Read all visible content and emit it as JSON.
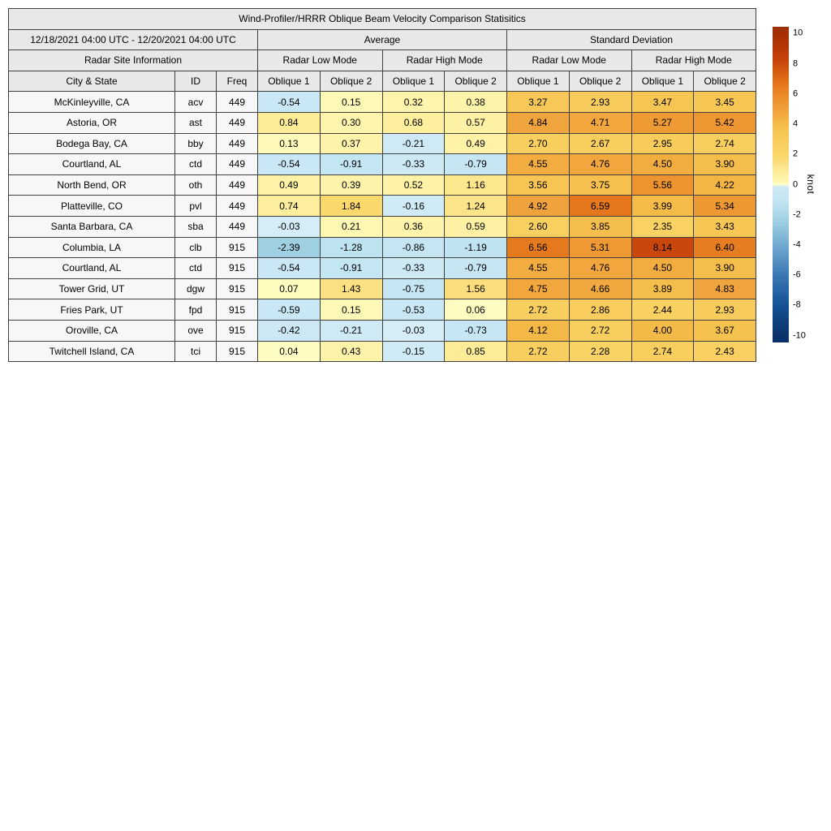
{
  "title": "Wind-Profiler/HRRR Oblique Beam Velocity Comparison Statisitics",
  "chart_data": {
    "type": "table",
    "title": "Wind-Profiler/HRRR Oblique Beam Velocity Comparison Statisitics",
    "date_range": "12/18/2021 04:00 UTC - 12/20/2021 04:00 UTC",
    "section_headers": [
      {
        "label": "Average",
        "colspan": 4
      },
      {
        "label": "Standard Deviation",
        "colspan": 4
      }
    ],
    "mode_headers": [
      {
        "label": "Radar Site Information",
        "colspan": 3
      },
      {
        "label": "Radar Low Mode",
        "colspan": 2
      },
      {
        "label": "Radar High Mode",
        "colspan": 2
      },
      {
        "label": "Radar Low Mode",
        "colspan": 2
      },
      {
        "label": "Radar High Mode",
        "colspan": 2
      }
    ],
    "column_headers": [
      "City & State",
      "ID",
      "Freq",
      "Oblique 1",
      "Oblique 2",
      "Oblique 1",
      "Oblique 2",
      "Oblique 1",
      "Oblique 2",
      "Oblique 1",
      "Oblique 2"
    ],
    "rows": [
      {
        "city": "McKinleyville, CA",
        "id": "acv",
        "freq": "449",
        "values": [
          -0.54,
          0.15,
          0.32,
          0.38,
          3.27,
          2.93,
          3.47,
          3.45
        ]
      },
      {
        "city": "Astoria, OR",
        "id": "ast",
        "freq": "449",
        "values": [
          0.84,
          0.3,
          0.68,
          0.57,
          4.84,
          4.71,
          5.27,
          5.42
        ]
      },
      {
        "city": "Bodega Bay, CA",
        "id": "bby",
        "freq": "449",
        "values": [
          0.13,
          0.37,
          -0.21,
          0.49,
          2.7,
          2.67,
          2.95,
          2.74
        ]
      },
      {
        "city": "Courtland, AL",
        "id": "ctd",
        "freq": "449",
        "values": [
          -0.54,
          -0.91,
          -0.33,
          -0.79,
          4.55,
          4.76,
          4.5,
          3.9
        ]
      },
      {
        "city": "North Bend, OR",
        "id": "oth",
        "freq": "449",
        "values": [
          0.49,
          0.39,
          0.52,
          1.16,
          3.56,
          3.75,
          5.56,
          4.22
        ]
      },
      {
        "city": "Platteville, CO",
        "id": "pvl",
        "freq": "449",
        "values": [
          0.74,
          1.84,
          -0.16,
          1.24,
          4.92,
          6.59,
          3.99,
          5.34
        ]
      },
      {
        "city": "Santa Barbara, CA",
        "id": "sba",
        "freq": "449",
        "values": [
          -0.03,
          0.21,
          0.36,
          0.59,
          2.6,
          3.85,
          2.35,
          3.43
        ]
      },
      {
        "city": "Columbia, LA",
        "id": "clb",
        "freq": "915",
        "values": [
          -2.39,
          -1.28,
          -0.86,
          -1.19,
          6.56,
          5.31,
          8.14,
          6.4
        ]
      },
      {
        "city": "Courtland, AL",
        "id": "ctd",
        "freq": "915",
        "values": [
          -0.54,
          -0.91,
          -0.33,
          -0.79,
          4.55,
          4.76,
          4.5,
          3.9
        ]
      },
      {
        "city": "Tower Grid, UT",
        "id": "dgw",
        "freq": "915",
        "values": [
          0.07,
          1.43,
          -0.75,
          1.56,
          4.75,
          4.66,
          3.89,
          4.83
        ]
      },
      {
        "city": "Fries Park, UT",
        "id": "fpd",
        "freq": "915",
        "values": [
          -0.59,
          0.15,
          -0.53,
          0.06,
          2.72,
          2.86,
          2.44,
          2.93
        ]
      },
      {
        "city": "Oroville, CA",
        "id": "ove",
        "freq": "915",
        "values": [
          -0.42,
          -0.21,
          -0.03,
          -0.73,
          4.12,
          2.72,
          4.0,
          3.67
        ]
      },
      {
        "city": "Twitchell Island, CA",
        "id": "tci",
        "freq": "915",
        "values": [
          0.04,
          0.43,
          -0.15,
          0.85,
          2.72,
          2.28,
          2.74,
          2.43
        ]
      }
    ],
    "colorbar": {
      "label": "knot",
      "ticks": [
        10,
        8,
        6,
        4,
        2,
        0,
        -2,
        -4,
        -6,
        -8,
        -10
      ],
      "vmin": -10.45,
      "vmax": 10.45,
      "colormap_stops": [
        [
          -10.5,
          "#08306b"
        ],
        [
          -10.0,
          "#0a3269"
        ],
        [
          -8.0,
          "#155293"
        ],
        [
          -6.0,
          "#3a77b3"
        ],
        [
          -4.0,
          "#73aad2"
        ],
        [
          -2.4,
          "#9fd0e2"
        ],
        [
          -1.9,
          "#abd8e9"
        ],
        [
          -1.25,
          "#bee2f0"
        ],
        [
          -0.8,
          "#c6e6f3"
        ],
        [
          -0.4,
          "#cbe8f4"
        ],
        [
          -0.05,
          "#d2ecf6"
        ],
        [
          -0.02,
          "#d6eef8"
        ],
        [
          0.0,
          "#fffec8"
        ],
        [
          0.1,
          "#fefabb"
        ],
        [
          0.25,
          "#fdf6ae"
        ],
        [
          0.5,
          "#fdf2a6"
        ],
        [
          0.9,
          "#fceb95"
        ],
        [
          1.25,
          "#fce48b"
        ],
        [
          1.9,
          "#fad769"
        ],
        [
          2.75,
          "#f8ce5e"
        ],
        [
          3.5,
          "#f6c654"
        ],
        [
          4.15,
          "#f4b745"
        ],
        [
          4.9,
          "#f0a23c"
        ],
        [
          5.5,
          "#ed9530"
        ],
        [
          6.6,
          "#e5781c"
        ],
        [
          7.4,
          "#d65f12"
        ],
        [
          8.2,
          "#c8440b"
        ],
        [
          9.0,
          "#b83808"
        ],
        [
          10.0,
          "#a32f04"
        ],
        [
          10.5,
          "#9e2d03"
        ]
      ]
    }
  },
  "colors": {
    "page_bg": "#ffffff",
    "header_bg": "#e8e8e8",
    "label_cell_bg": "#f7f7f7",
    "border": "#3f3f3f",
    "text": "#000000"
  }
}
